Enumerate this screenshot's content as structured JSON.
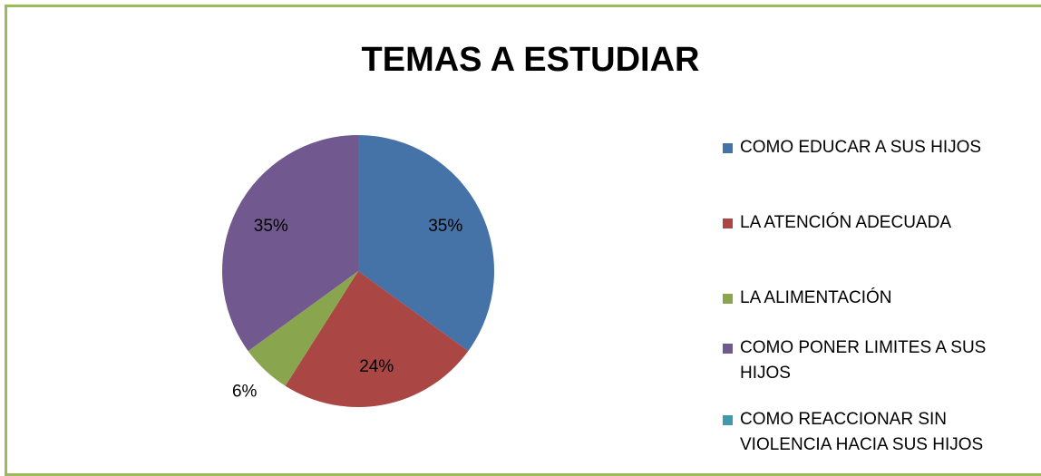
{
  "chart_data": {
    "type": "pie",
    "title": "TEMAS A  ESTUDIAR",
    "categories": [
      "COMO EDUCAR A SUS HIJOS",
      "LA ATENCIÓN ADECUADA",
      "LA ALIMENTACIÓN",
      "COMO PONER LIMITES A SUS HIJOS",
      "COMO REACCIONAR SIN VIOLENCIA HACIA SUS HIJOS"
    ],
    "values": [
      35,
      24,
      6,
      35,
      0
    ],
    "value_labels": [
      "35%",
      "24%",
      "6%",
      "35%",
      null
    ],
    "colors": [
      "#4572a7",
      "#aa4643",
      "#89a54e",
      "#71588f",
      "#4198af"
    ],
    "legend": "right"
  }
}
